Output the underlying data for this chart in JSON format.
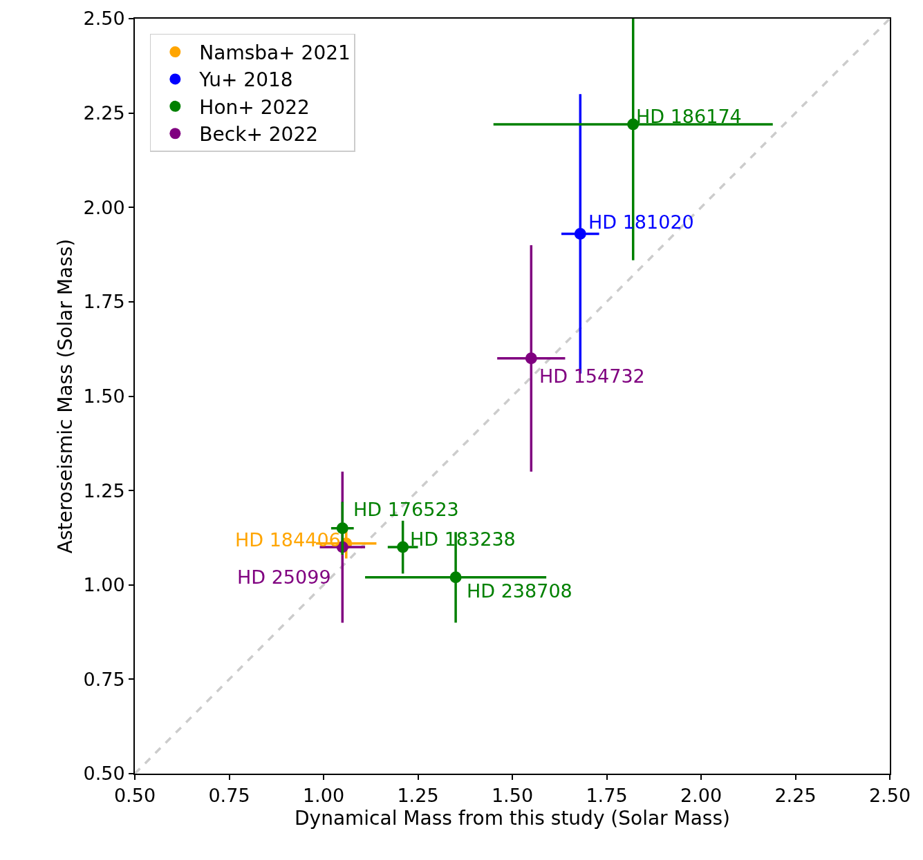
{
  "chart_data": {
    "type": "scatter",
    "xlabel": "Dynamical Mass from this study (Solar Mass)",
    "ylabel": "Asteroseismic Mass (Solar Mass)",
    "xlim": [
      0.5,
      2.5
    ],
    "ylim": [
      0.5,
      2.5
    ],
    "xticks": [
      {
        "value": 0.5,
        "label": "0.50"
      },
      {
        "value": 0.75,
        "label": "0.75"
      },
      {
        "value": 1.0,
        "label": "1.00"
      },
      {
        "value": 1.25,
        "label": "1.25"
      },
      {
        "value": 1.5,
        "label": "1.50"
      },
      {
        "value": 1.75,
        "label": "1.75"
      },
      {
        "value": 2.0,
        "label": "2.00"
      },
      {
        "value": 2.25,
        "label": "2.25"
      },
      {
        "value": 2.5,
        "label": "2.50"
      }
    ],
    "yticks": [
      {
        "value": 0.5,
        "label": "0.50"
      },
      {
        "value": 0.75,
        "label": "0.75"
      },
      {
        "value": 1.0,
        "label": "1.00"
      },
      {
        "value": 1.25,
        "label": "1.25"
      },
      {
        "value": 1.5,
        "label": "1.50"
      },
      {
        "value": 1.75,
        "label": "1.75"
      },
      {
        "value": 2.0,
        "label": "2.00"
      },
      {
        "value": 2.25,
        "label": "2.25"
      },
      {
        "value": 2.5,
        "label": "2.50"
      }
    ],
    "grid": false,
    "legend": "top left",
    "marker": "circle",
    "series": [
      {
        "type": "line",
        "color": "#cccccc",
        "line_style": "dashed",
        "marker": "none",
        "x": [
          0.5,
          2.5
        ],
        "values": [
          0.5,
          2.5
        ]
      },
      {
        "name": "Namsba+ 2021",
        "color": "#ffa500",
        "x": [
          1.06
        ],
        "values": [
          1.11
        ],
        "errors": [
          0.04
        ],
        "xerrors": [
          0.08
        ]
      },
      {
        "name": "Yu+ 2018",
        "color": "#0000ff",
        "x": [
          1.68
        ],
        "values": [
          1.93
        ],
        "errors": [
          0.37
        ],
        "xerrors": [
          0.05
        ]
      },
      {
        "name": "Hon+ 2022",
        "color": "#008000",
        "x": [
          1.82,
          1.05,
          1.21,
          1.35
        ],
        "values": [
          2.22,
          1.15,
          1.1,
          1.02
        ],
        "errors": [
          [
            1.86,
            2.5
          ],
          0.07,
          0.07,
          0.12
        ],
        "xerrors": [
          0.37,
          0.03,
          0.04,
          0.24
        ]
      },
      {
        "name": "Beck+ 2022",
        "color": "#800080",
        "x": [
          1.55,
          1.05
        ],
        "values": [
          1.6,
          1.1
        ],
        "errors": [
          0.3,
          0.2
        ],
        "xerrors": [
          0.09,
          0.06
        ]
      }
    ],
    "annotations": [
      {
        "text": "HD 184406",
        "x": 1.06,
        "y": 1.11
      },
      {
        "text": "HD 181020",
        "x": 1.68,
        "y": 1.93
      },
      {
        "text": "HD 186174",
        "x": 1.82,
        "y": 2.22
      },
      {
        "text": "HD 176523",
        "x": 1.05,
        "y": 1.15
      },
      {
        "text": "HD 183238",
        "x": 1.21,
        "y": 1.1
      },
      {
        "text": "HD 238708",
        "x": 1.35,
        "y": 1.02
      },
      {
        "text": "HD 154732",
        "x": 1.55,
        "y": 1.6
      },
      {
        "text": "HD 25099",
        "x": 1.05,
        "y": 1.1
      }
    ]
  }
}
